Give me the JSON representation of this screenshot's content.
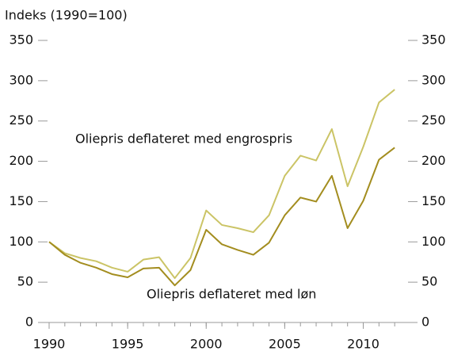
{
  "chart_data": {
    "type": "line",
    "y_axis_title": "Indeks (1990=100)",
    "x": [
      1990,
      1991,
      1992,
      1993,
      1994,
      1995,
      1996,
      1997,
      1998,
      1999,
      2000,
      2001,
      2002,
      2003,
      2004,
      2005,
      2006,
      2007,
      2008,
      2009,
      2010,
      2011,
      2012
    ],
    "series": [
      {
        "name": "Oliepris deflateret med engrospris",
        "color": "#cbc466",
        "values": [
          100,
          86,
          80,
          76,
          68,
          63,
          78,
          81,
          55,
          80,
          139,
          121,
          117,
          112,
          133,
          182,
          207,
          201,
          240,
          169,
          218,
          273,
          289
        ]
      },
      {
        "name": "Oliepris deflateret med løn",
        "color": "#a38d1f",
        "values": [
          100,
          84,
          74,
          68,
          60,
          56,
          67,
          68,
          46,
          65,
          115,
          97,
          90,
          84,
          99,
          133,
          155,
          150,
          182,
          117,
          151,
          202,
          217
        ]
      }
    ],
    "xlim": [
      1990,
      2013
    ],
    "xticks": [
      1990,
      1995,
      2000,
      2005,
      2010
    ],
    "ylim": [
      0,
      350
    ],
    "yticks": [
      0,
      50,
      100,
      150,
      200,
      250,
      300,
      350
    ],
    "y2lim": [
      0,
      350
    ],
    "y2ticks": [
      0,
      50,
      100,
      150,
      200,
      250,
      300,
      350
    ],
    "grid": false
  }
}
